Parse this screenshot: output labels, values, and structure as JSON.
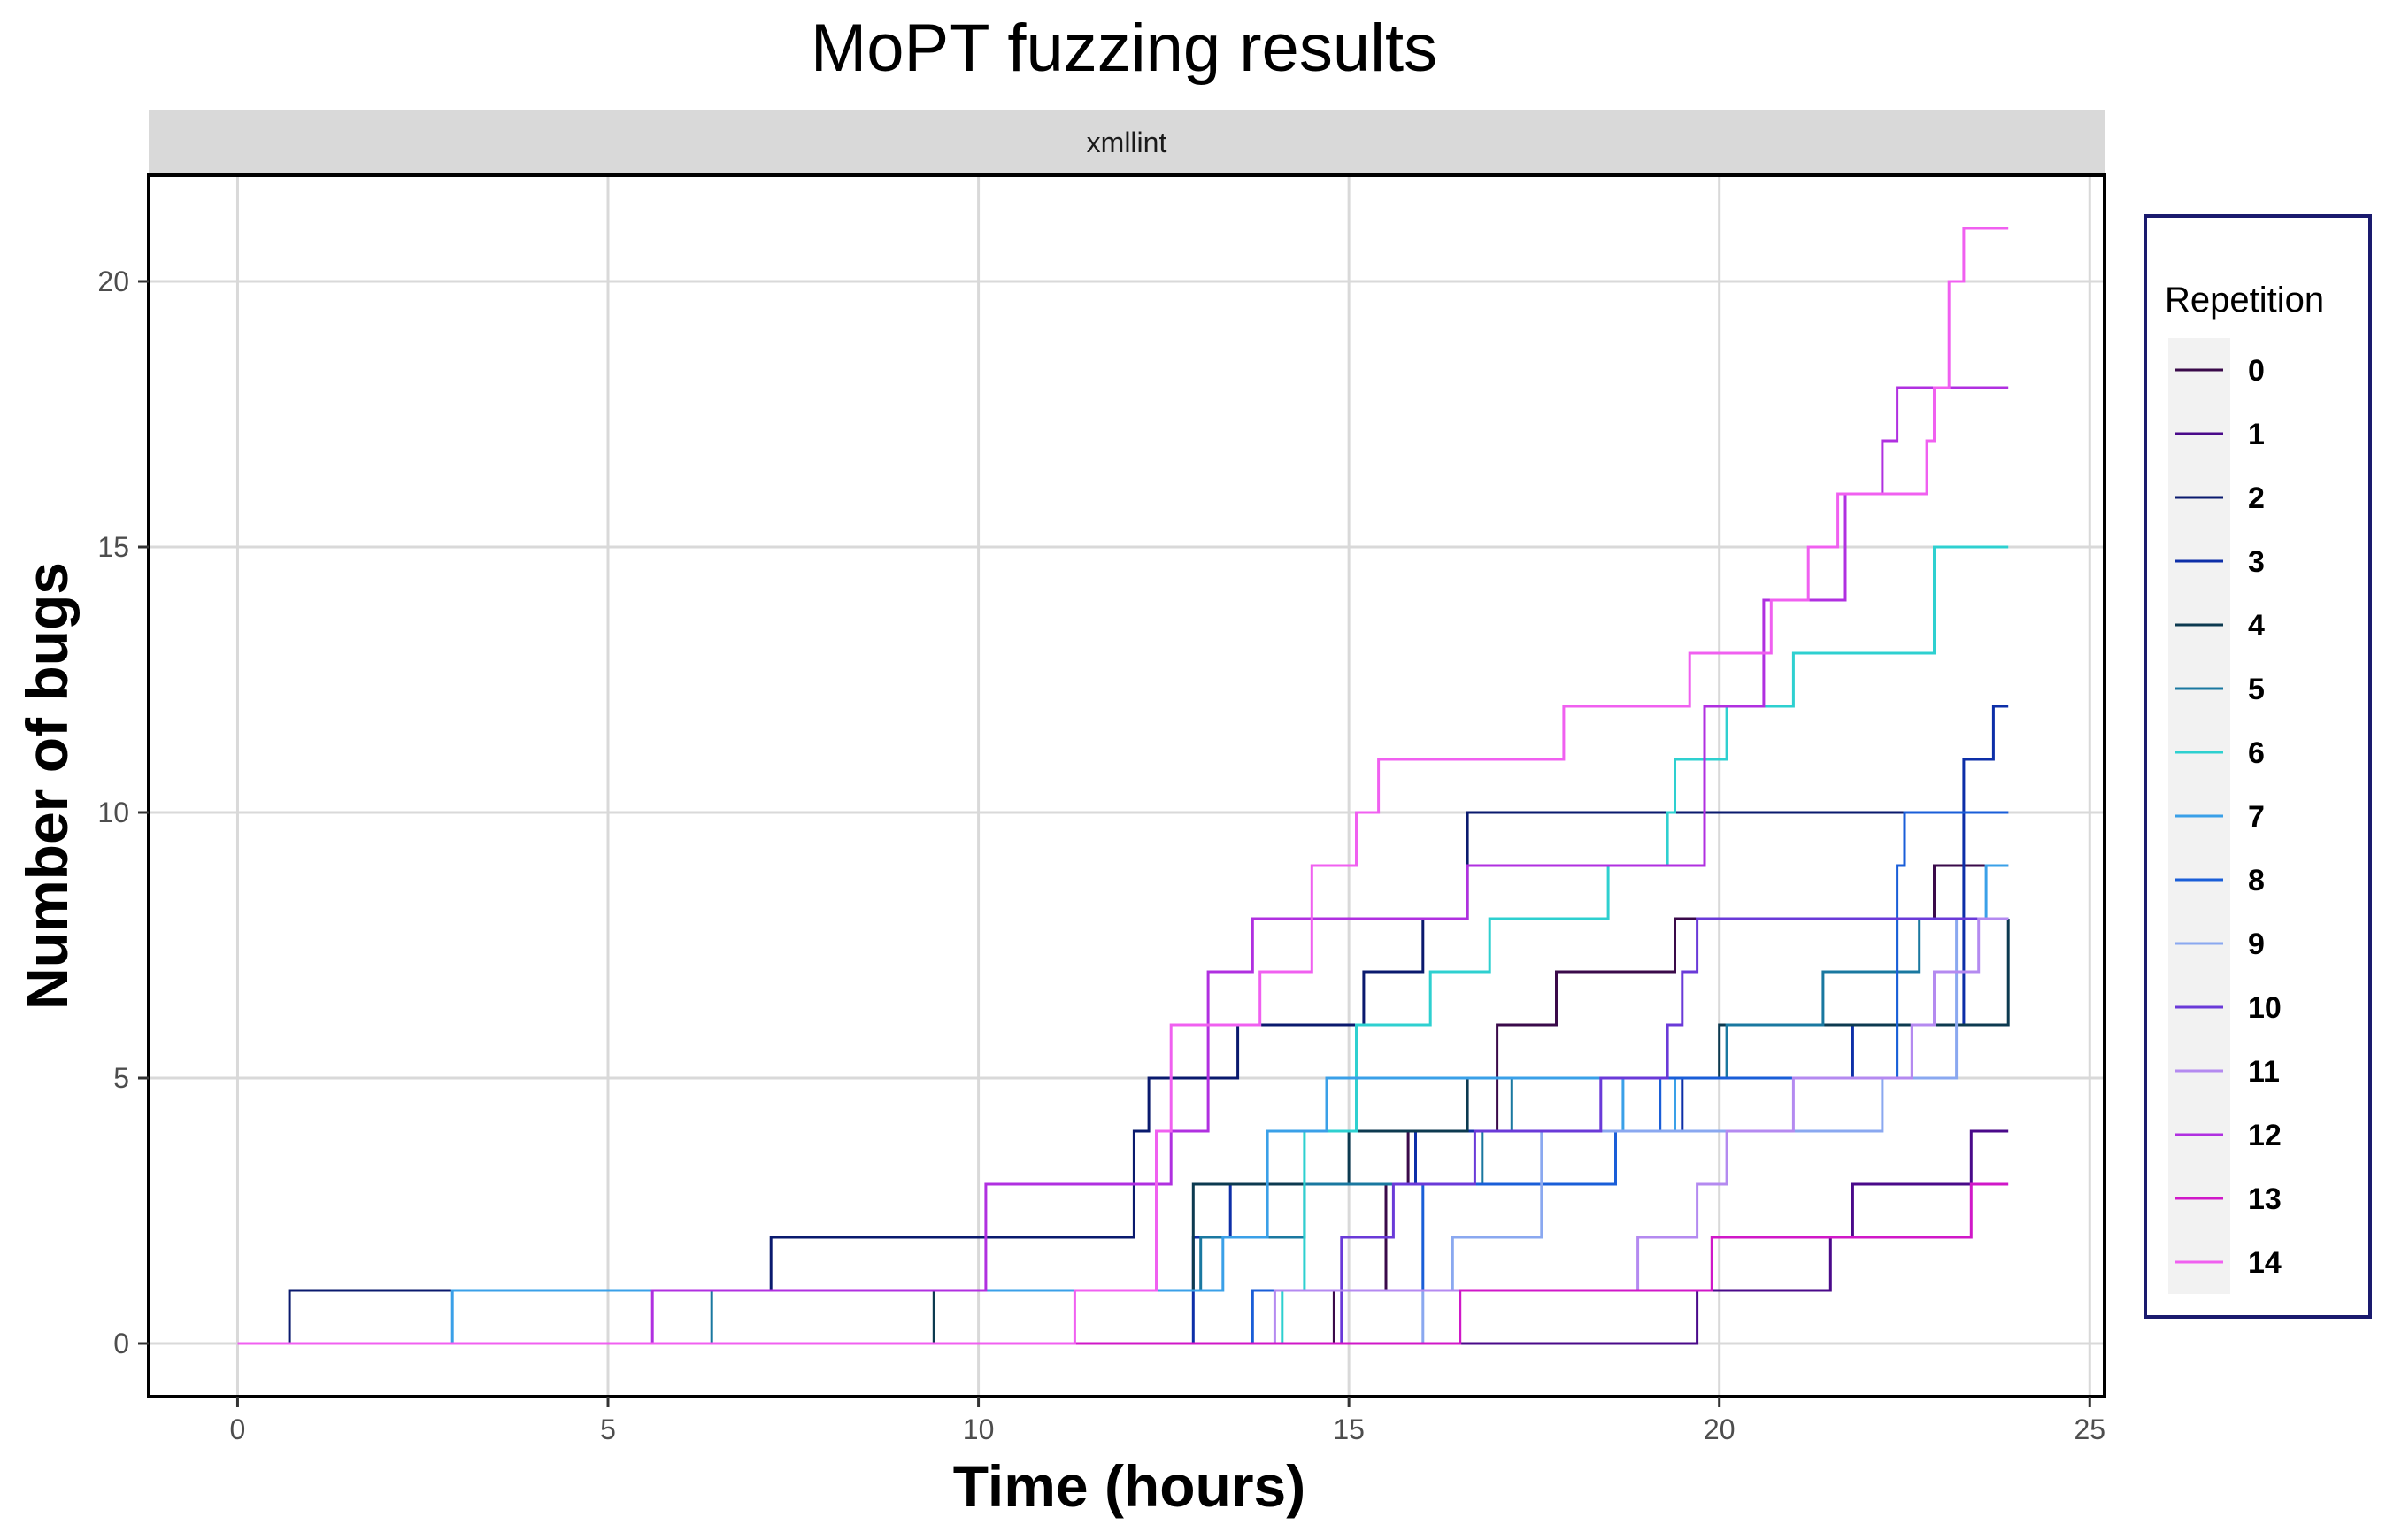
{
  "chart_data": {
    "type": "line",
    "title": "MoPT fuzzing results",
    "facet": "xmllint",
    "xlabel": "Time (hours)",
    "ylabel": "Number of bugs",
    "xlim": [
      -1.2,
      25.2
    ],
    "ylim": [
      -1,
      22
    ],
    "xticks": [
      0,
      5,
      10,
      15,
      20,
      25
    ],
    "yticks": [
      0,
      5,
      10,
      15,
      20
    ],
    "grid": true,
    "legend": {
      "title": "Repetition",
      "position": "right"
    },
    "series": [
      {
        "name": "0",
        "color": "#3a0a4a",
        "points": [
          [
            0,
            0
          ],
          [
            14.8,
            0
          ],
          [
            14.8,
            1
          ],
          [
            15.5,
            1
          ],
          [
            15.5,
            3
          ],
          [
            15.8,
            3
          ],
          [
            15.8,
            4
          ],
          [
            17,
            4
          ],
          [
            17,
            6
          ],
          [
            17.8,
            6
          ],
          [
            17.8,
            7
          ],
          [
            19.4,
            7
          ],
          [
            19.4,
            8
          ],
          [
            22.9,
            8
          ],
          [
            22.9,
            9
          ],
          [
            23.9,
            9
          ]
        ]
      },
      {
        "name": "1",
        "color": "#4a0a8a",
        "points": [
          [
            0,
            0
          ],
          [
            16.5,
            0
          ],
          [
            16.5,
            0
          ],
          [
            19.7,
            0
          ],
          [
            19.7,
            1
          ],
          [
            21.5,
            1
          ],
          [
            21.5,
            2
          ],
          [
            21.8,
            2
          ],
          [
            21.8,
            3
          ],
          [
            23.4,
            3
          ],
          [
            23.4,
            4
          ],
          [
            23.9,
            4
          ]
        ]
      },
      {
        "name": "2",
        "color": "#0a1a6e",
        "points": [
          [
            0,
            0
          ],
          [
            0.7,
            0
          ],
          [
            0.7,
            1
          ],
          [
            7.2,
            1
          ],
          [
            7.2,
            2
          ],
          [
            12.1,
            2
          ],
          [
            12.1,
            4
          ],
          [
            12.3,
            4
          ],
          [
            12.3,
            5
          ],
          [
            13.5,
            5
          ],
          [
            13.5,
            6
          ],
          [
            15.2,
            6
          ],
          [
            15.2,
            7
          ],
          [
            16,
            7
          ],
          [
            16,
            8
          ],
          [
            16.6,
            8
          ],
          [
            16.6,
            10
          ],
          [
            23.9,
            10
          ]
        ]
      },
      {
        "name": "3",
        "color": "#0d2fa8",
        "points": [
          [
            0,
            0
          ],
          [
            12.9,
            0
          ],
          [
            12.9,
            2
          ],
          [
            13.4,
            2
          ],
          [
            13.4,
            3
          ],
          [
            15.9,
            3
          ],
          [
            15.9,
            4
          ],
          [
            19.5,
            4
          ],
          [
            19.5,
            5
          ],
          [
            21.8,
            5
          ],
          [
            21.8,
            6
          ],
          [
            23.3,
            6
          ],
          [
            23.3,
            11
          ],
          [
            23.7,
            11
          ],
          [
            23.7,
            12
          ],
          [
            23.9,
            12
          ]
        ]
      },
      {
        "name": "4",
        "color": "#0c3a50",
        "points": [
          [
            0,
            0
          ],
          [
            9.4,
            0
          ],
          [
            9.4,
            1
          ],
          [
            12.9,
            1
          ],
          [
            12.9,
            3
          ],
          [
            15,
            3
          ],
          [
            15,
            4
          ],
          [
            16.6,
            4
          ],
          [
            16.6,
            5
          ],
          [
            20,
            5
          ],
          [
            20,
            6
          ],
          [
            20.2,
            6
          ],
          [
            20.2,
            6
          ],
          [
            23.9,
            6
          ],
          [
            23.9,
            8
          ]
        ]
      },
      {
        "name": "5",
        "color": "#1a78a0",
        "points": [
          [
            0,
            0
          ],
          [
            6.4,
            0
          ],
          [
            6.4,
            1
          ],
          [
            13,
            1
          ],
          [
            13,
            2
          ],
          [
            14.4,
            2
          ],
          [
            14.4,
            3
          ],
          [
            16.8,
            3
          ],
          [
            16.8,
            4
          ],
          [
            17.2,
            4
          ],
          [
            17.2,
            5
          ],
          [
            20.1,
            5
          ],
          [
            20.1,
            6
          ],
          [
            21.4,
            6
          ],
          [
            21.4,
            7
          ],
          [
            22.7,
            7
          ],
          [
            22.7,
            8
          ],
          [
            23.9,
            8
          ]
        ]
      },
      {
        "name": "6",
        "color": "#2ed0d0",
        "points": [
          [
            0,
            0
          ],
          [
            14.1,
            0
          ],
          [
            14.1,
            1
          ],
          [
            14.4,
            1
          ],
          [
            14.4,
            4
          ],
          [
            15.1,
            4
          ],
          [
            15.1,
            6
          ],
          [
            16.1,
            6
          ],
          [
            16.1,
            7
          ],
          [
            16.9,
            7
          ],
          [
            16.9,
            8
          ],
          [
            18.5,
            8
          ],
          [
            18.5,
            9
          ],
          [
            19.3,
            9
          ],
          [
            19.3,
            10
          ],
          [
            19.4,
            10
          ],
          [
            19.4,
            11
          ],
          [
            20.1,
            11
          ],
          [
            20.1,
            12
          ],
          [
            21,
            12
          ],
          [
            21,
            13
          ],
          [
            22.9,
            13
          ],
          [
            22.9,
            15
          ],
          [
            23.9,
            15
          ]
        ]
      },
      {
        "name": "7",
        "color": "#3aa0e8",
        "points": [
          [
            0,
            0
          ],
          [
            2.9,
            0
          ],
          [
            2.9,
            1
          ],
          [
            13.3,
            1
          ],
          [
            13.3,
            2
          ],
          [
            13.9,
            2
          ],
          [
            13.9,
            4
          ],
          [
            14.7,
            4
          ],
          [
            14.7,
            5
          ],
          [
            18.7,
            5
          ],
          [
            18.7,
            4
          ],
          [
            19.4,
            4
          ],
          [
            19.4,
            5
          ],
          [
            22.4,
            5
          ],
          [
            22.4,
            8
          ],
          [
            23.6,
            8
          ],
          [
            23.6,
            9
          ],
          [
            23.9,
            9
          ]
        ]
      },
      {
        "name": "8",
        "color": "#1a5ed8",
        "points": [
          [
            0,
            0
          ],
          [
            13.7,
            0
          ],
          [
            13.7,
            1
          ],
          [
            16,
            1
          ],
          [
            16,
            3
          ],
          [
            18.6,
            3
          ],
          [
            18.6,
            4
          ],
          [
            19.2,
            4
          ],
          [
            19.2,
            5
          ],
          [
            22.4,
            5
          ],
          [
            22.4,
            9
          ],
          [
            22.5,
            9
          ],
          [
            22.5,
            10
          ],
          [
            23.9,
            10
          ]
        ]
      },
      {
        "name": "9",
        "color": "#8aa8f0",
        "points": [
          [
            0,
            0
          ],
          [
            16,
            0
          ],
          [
            16,
            1
          ],
          [
            16.4,
            1
          ],
          [
            16.4,
            2
          ],
          [
            17.6,
            2
          ],
          [
            17.6,
            4
          ],
          [
            21.1,
            4
          ],
          [
            21.1,
            4
          ],
          [
            22.2,
            4
          ],
          [
            22.2,
            5
          ],
          [
            23.2,
            5
          ],
          [
            23.2,
            8
          ],
          [
            23.9,
            8
          ]
        ]
      },
      {
        "name": "10",
        "color": "#6a3ad8",
        "points": [
          [
            0,
            0
          ],
          [
            14.9,
            0
          ],
          [
            14.9,
            2
          ],
          [
            15.6,
            2
          ],
          [
            15.6,
            3
          ],
          [
            16.7,
            3
          ],
          [
            16.7,
            4
          ],
          [
            18.4,
            4
          ],
          [
            18.4,
            5
          ],
          [
            19.3,
            5
          ],
          [
            19.3,
            6
          ],
          [
            19.5,
            6
          ],
          [
            19.5,
            7
          ],
          [
            19.7,
            7
          ],
          [
            19.7,
            8
          ],
          [
            23.9,
            8
          ]
        ]
      },
      {
        "name": "11",
        "color": "#b48af0",
        "points": [
          [
            0,
            0
          ],
          [
            14,
            0
          ],
          [
            14,
            1
          ],
          [
            18.9,
            1
          ],
          [
            18.9,
            2
          ],
          [
            19.7,
            2
          ],
          [
            19.7,
            3
          ],
          [
            20.1,
            3
          ],
          [
            20.1,
            4
          ],
          [
            21,
            4
          ],
          [
            21,
            5
          ],
          [
            22.6,
            5
          ],
          [
            22.6,
            6
          ],
          [
            22.9,
            6
          ],
          [
            22.9,
            7
          ],
          [
            23.5,
            7
          ],
          [
            23.5,
            8
          ],
          [
            23.9,
            8
          ]
        ]
      },
      {
        "name": "12",
        "color": "#b030e0",
        "points": [
          [
            0,
            0
          ],
          [
            5.6,
            0
          ],
          [
            5.6,
            1
          ],
          [
            10.1,
            1
          ],
          [
            10.1,
            3
          ],
          [
            12.6,
            3
          ],
          [
            12.6,
            4
          ],
          [
            13.1,
            4
          ],
          [
            13.1,
            7
          ],
          [
            13.7,
            7
          ],
          [
            13.7,
            8
          ],
          [
            16.6,
            8
          ],
          [
            16.6,
            9
          ],
          [
            19.8,
            9
          ],
          [
            19.8,
            12
          ],
          [
            20.6,
            12
          ],
          [
            20.6,
            14
          ],
          [
            21.7,
            14
          ],
          [
            21.7,
            16
          ],
          [
            22.2,
            16
          ],
          [
            22.2,
            17
          ],
          [
            22.4,
            17
          ],
          [
            22.4,
            18
          ],
          [
            23.9,
            18
          ]
        ]
      },
      {
        "name": "13",
        "color": "#d018c8",
        "points": [
          [
            0,
            0
          ],
          [
            11.3,
            0
          ],
          [
            11.3,
            0
          ],
          [
            16.5,
            0
          ],
          [
            16.5,
            1
          ],
          [
            19.9,
            1
          ],
          [
            19.9,
            2
          ],
          [
            23.4,
            2
          ],
          [
            23.4,
            3
          ],
          [
            23.9,
            3
          ]
        ]
      },
      {
        "name": "14",
        "color": "#f060f0",
        "points": [
          [
            0,
            0
          ],
          [
            11.3,
            0
          ],
          [
            11.3,
            1
          ],
          [
            12.4,
            1
          ],
          [
            12.4,
            4
          ],
          [
            12.6,
            4
          ],
          [
            12.6,
            6
          ],
          [
            13.8,
            6
          ],
          [
            13.8,
            7
          ],
          [
            14.5,
            7
          ],
          [
            14.5,
            9
          ],
          [
            15.1,
            9
          ],
          [
            15.1,
            10
          ],
          [
            15.4,
            10
          ],
          [
            15.4,
            11
          ],
          [
            17.9,
            11
          ],
          [
            17.9,
            12
          ],
          [
            19.6,
            12
          ],
          [
            19.6,
            13
          ],
          [
            20.7,
            13
          ],
          [
            20.7,
            14
          ],
          [
            21.2,
            14
          ],
          [
            21.2,
            15
          ],
          [
            21.6,
            15
          ],
          [
            21.6,
            16
          ],
          [
            22.8,
            16
          ],
          [
            22.8,
            17
          ],
          [
            22.9,
            17
          ],
          [
            22.9,
            18
          ],
          [
            23.1,
            18
          ],
          [
            23.1,
            20
          ],
          [
            23.3,
            20
          ],
          [
            23.3,
            21
          ],
          [
            23.9,
            21
          ]
        ]
      }
    ]
  }
}
